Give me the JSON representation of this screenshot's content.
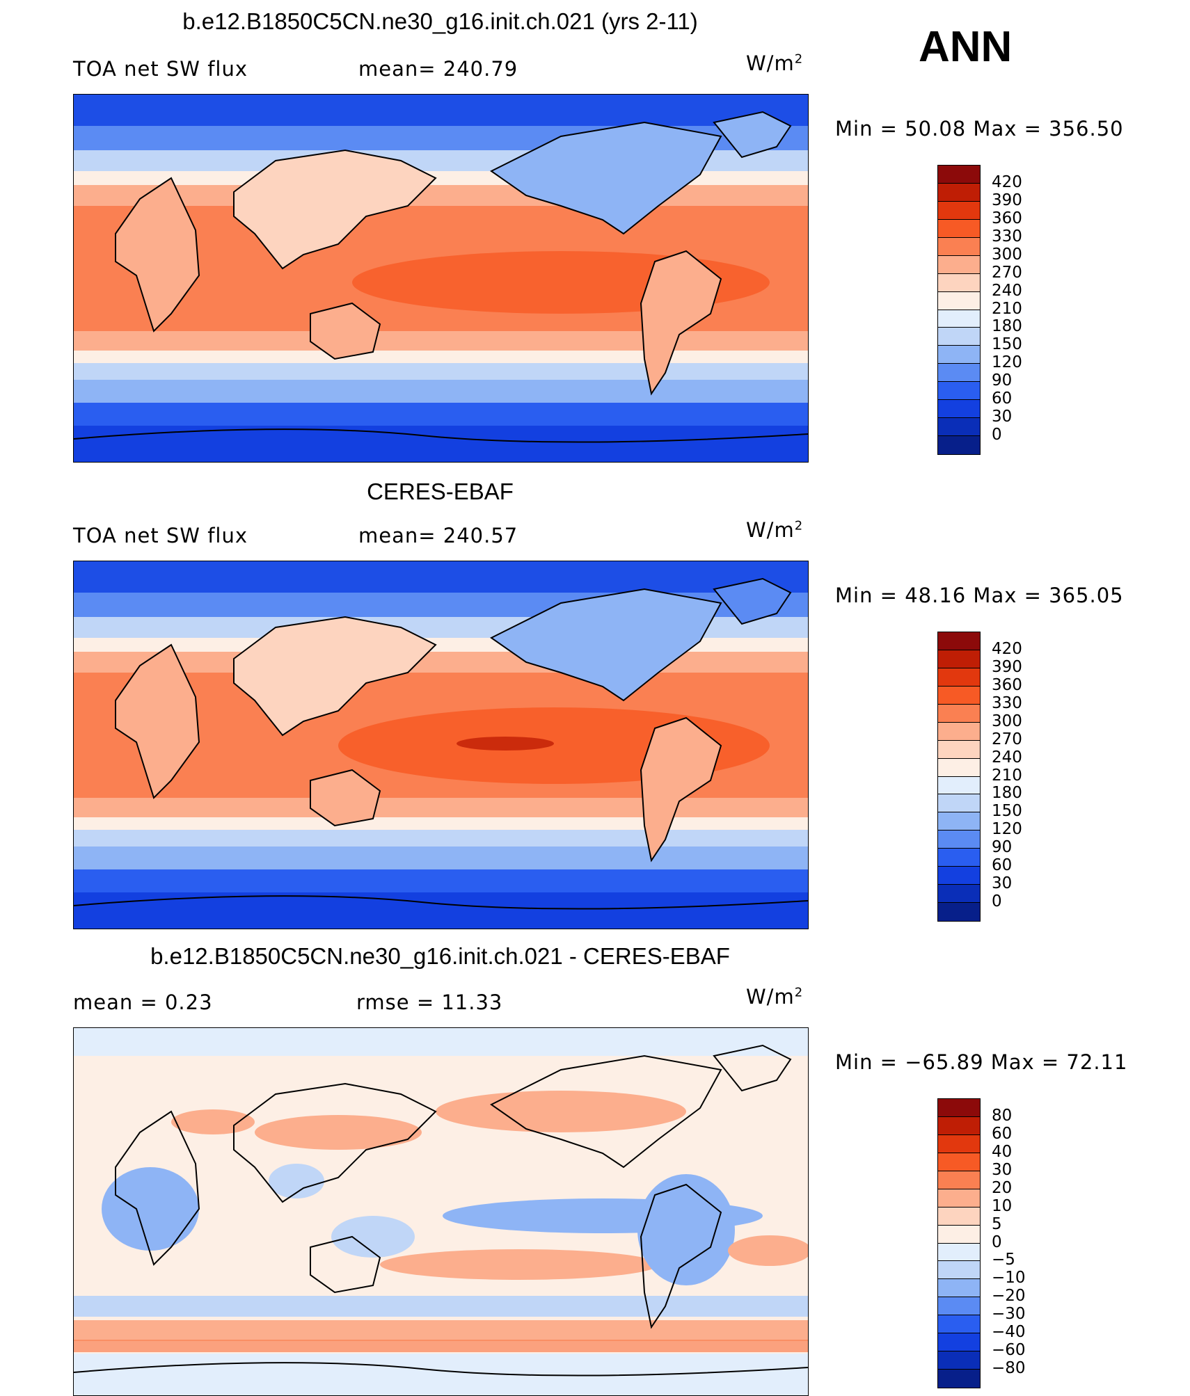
{
  "season": "ANN",
  "units": {
    "base": "W/m",
    "exp": "2"
  },
  "panels": [
    {
      "title": "b.e12.B1850C5CN.ne30_g16.init.ch.021 (yrs 2-11)",
      "left_label": "TOA net SW flux",
      "stat_label": "mean= 240.79",
      "minmax": "Min =   50.08  Max  =  356.50",
      "colorbar": {
        "labels": [
          "420",
          "390",
          "360",
          "330",
          "300",
          "270",
          "240",
          "210",
          "180",
          "150",
          "120",
          "90",
          "60",
          "30",
          "0"
        ],
        "colors": [
          "#8c0a0a",
          "#bf1e05",
          "#e2380e",
          "#f75a25",
          "#fa8052",
          "#fcae8d",
          "#fdd4bf",
          "#fdefe5",
          "#e2eefc",
          "#c0d6f7",
          "#8eb4f5",
          "#5b8bf3",
          "#2a5ef0",
          "#1340e0",
          "#0a2eb8",
          "#071f8a"
        ]
      }
    },
    {
      "title": "CERES-EBAF",
      "left_label": "TOA net SW flux",
      "stat_label": "mean= 240.57",
      "minmax": "Min =   48.16  Max  =  365.05",
      "colorbar": {
        "labels": [
          "420",
          "390",
          "360",
          "330",
          "300",
          "270",
          "240",
          "210",
          "180",
          "150",
          "120",
          "90",
          "60",
          "30",
          "0"
        ],
        "colors": [
          "#8c0a0a",
          "#bf1e05",
          "#e2380e",
          "#f75a25",
          "#fa8052",
          "#fcae8d",
          "#fdd4bf",
          "#fdefe5",
          "#e2eefc",
          "#c0d6f7",
          "#8eb4f5",
          "#5b8bf3",
          "#2a5ef0",
          "#1340e0",
          "#0a2eb8",
          "#071f8a"
        ]
      }
    },
    {
      "title": "b.e12.B1850C5CN.ne30_g16.init.ch.021 - CERES-EBAF",
      "left_label": "mean =     0.23",
      "stat_label": "rmse =    11.33",
      "minmax": "Min = −65.89  Max  =    72.11",
      "colorbar": {
        "labels": [
          "80",
          "60",
          "40",
          "30",
          "20",
          "10",
          "5",
          "0",
          "−5",
          "−10",
          "−20",
          "−30",
          "−40",
          "−60",
          "−80"
        ],
        "colors": [
          "#8c0a0a",
          "#bf1e05",
          "#e2380e",
          "#f75a25",
          "#fa8052",
          "#fcae8d",
          "#fdd4bf",
          "#fdefe5",
          "#e2eefc",
          "#c0d6f7",
          "#8eb4f5",
          "#5b8bf3",
          "#2a5ef0",
          "#1340e0",
          "#0a2eb8",
          "#071f8a"
        ]
      }
    }
  ]
}
